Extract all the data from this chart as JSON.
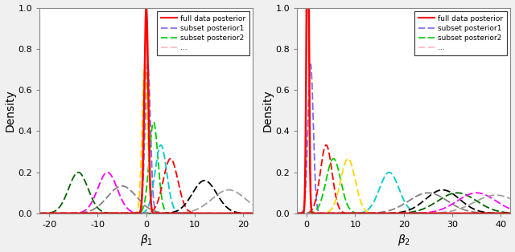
{
  "panel1": {
    "xlabel": "$\\beta_1$",
    "ylabel": "Density",
    "xlim": [
      -22,
      22
    ],
    "ylim": [
      0.0,
      1.0
    ],
    "xticks": [
      -20,
      -10,
      0,
      10,
      20
    ],
    "yticks": [
      0.0,
      0.2,
      0.4,
      0.6,
      0.8,
      1.0
    ],
    "ytick_labels": [
      "0.0",
      "0.2",
      "0.4",
      "0.6",
      "0.8",
      "1.0"
    ],
    "full_posterior": {
      "mean": 0.0,
      "std": 0.4
    },
    "subsets": [
      {
        "mean": 0.3,
        "std": 0.55,
        "color": "#7B68EE"
      },
      {
        "mean": 1.5,
        "std": 0.9,
        "color": "#00CC00"
      },
      {
        "mean": -0.3,
        "std": 0.55,
        "color": "#FFD700"
      },
      {
        "mean": 5.0,
        "std": 1.5,
        "color": "#FF0000"
      },
      {
        "mean": 3.0,
        "std": 1.2,
        "color": "#00CCCC"
      },
      {
        "mean": -8.0,
        "std": 2.0,
        "color": "#FF00FF"
      },
      {
        "mean": -5.0,
        "std": 3.0,
        "color": "#808080"
      },
      {
        "mean": 12.0,
        "std": 2.5,
        "color": "#000000"
      },
      {
        "mean": -14.0,
        "std": 2.0,
        "color": "#006400"
      },
      {
        "mean": 17.0,
        "std": 3.5,
        "color": "#A0A0A0"
      }
    ]
  },
  "panel2": {
    "xlabel": "$\\beta_2$",
    "ylabel": "Density",
    "xlim": [
      -2,
      42
    ],
    "ylim": [
      0.0,
      1.0
    ],
    "xticks": [
      0,
      10,
      20,
      30,
      40
    ],
    "yticks": [
      0.0,
      0.2,
      0.4,
      0.6,
      0.8,
      1.0
    ],
    "ytick_labels": [
      "0.0",
      "0.2",
      "0.4",
      "0.6",
      "0.8",
      "1.0"
    ],
    "full_posterior": {
      "mean": 0.2,
      "std": 0.25
    },
    "subsets": [
      {
        "mean": 0.8,
        "std": 0.55,
        "color": "#7B68EE"
      },
      {
        "mean": 4.0,
        "std": 1.2,
        "color": "#FF0000"
      },
      {
        "mean": 5.5,
        "std": 1.5,
        "color": "#00CC00"
      },
      {
        "mean": 8.5,
        "std": 1.5,
        "color": "#FFD700"
      },
      {
        "mean": 17.0,
        "std": 2.0,
        "color": "#00CCCC"
      },
      {
        "mean": 25.0,
        "std": 4.0,
        "color": "#808080"
      },
      {
        "mean": 28.0,
        "std": 3.5,
        "color": "#000000"
      },
      {
        "mean": 31.0,
        "std": 4.0,
        "color": "#006400"
      },
      {
        "mean": 35.0,
        "std": 4.0,
        "color": "#FF00FF"
      },
      {
        "mean": 39.0,
        "std": 4.5,
        "color": "#A0A0A0"
      }
    ]
  },
  "legend": {
    "full_color": "#FF0000",
    "sub1_color": "#7B68EE",
    "sub2_color": "#00CC00",
    "dots_color": "#FFB6C1"
  },
  "bg_color": "#F0F0F0",
  "plot_bg": "#FFFFFF"
}
